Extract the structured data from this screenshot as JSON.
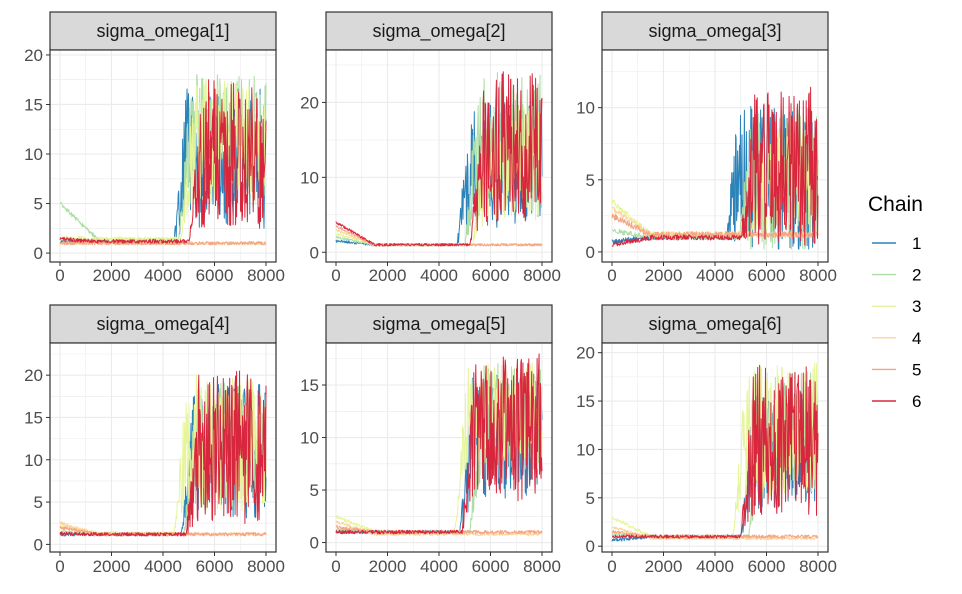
{
  "chart_data": {
    "type": "line",
    "layout": "facet-grid 2x3 trace plots",
    "x_ticks": [
      0,
      2000,
      4000,
      6000,
      8000
    ],
    "x_range": [
      0,
      8000
    ],
    "grid": true,
    "legend": {
      "title": "Chain",
      "placement": "right",
      "entries": [
        {
          "label": "1",
          "color": "#2b83ba"
        },
        {
          "label": "2",
          "color": "#abdda4"
        },
        {
          "label": "3",
          "color": "#e6f598"
        },
        {
          "label": "4",
          "color": "#fdd49e"
        },
        {
          "label": "5",
          "color": "#f4a582"
        },
        {
          "label": "6",
          "color": "#d7263d"
        }
      ]
    },
    "panels": [
      {
        "title": "sigma_omega[1]",
        "ylim": [
          -0.9,
          20.5
        ],
        "y_ticks": [
          0,
          5,
          10,
          15,
          20
        ],
        "series": [
          {
            "name": "1",
            "start": 1.2,
            "pre": 1.2,
            "post": 9.5,
            "amp": 7.0,
            "switch": 4400
          },
          {
            "name": "2",
            "start": 5.0,
            "pre": 1.3,
            "post": 12.0,
            "amp": 6.0,
            "switch": 4600
          },
          {
            "name": "3",
            "start": 1.5,
            "pre": 1.4,
            "post": 11.0,
            "amp": 6.5,
            "switch": 4700
          },
          {
            "name": "4",
            "start": 1.0,
            "pre": 1.0,
            "post": 1.5,
            "amp": 0.5,
            "switch": 8000
          },
          {
            "name": "5",
            "start": 1.0,
            "pre": 1.0,
            "post": 1.2,
            "amp": 0.4,
            "switch": 8000
          },
          {
            "name": "6",
            "start": 1.4,
            "pre": 1.2,
            "post": 10.0,
            "amp": 7.5,
            "switch": 5000
          }
        ]
      },
      {
        "title": "sigma_omega[2]",
        "ylim": [
          -1.3,
          27.0
        ],
        "y_ticks": [
          0,
          10,
          20
        ],
        "series": [
          {
            "name": "1",
            "start": 1.5,
            "pre": 1.0,
            "post": 12.0,
            "amp": 9.0,
            "switch": 4700
          },
          {
            "name": "2",
            "start": 2.0,
            "pre": 1.0,
            "post": 15.0,
            "amp": 9.0,
            "switch": 5000
          },
          {
            "name": "3",
            "start": 2.5,
            "pre": 1.0,
            "post": 12.0,
            "amp": 8.0,
            "switch": 5300
          },
          {
            "name": "4",
            "start": 3.0,
            "pre": 1.0,
            "post": 1.2,
            "amp": 0.4,
            "switch": 8000
          },
          {
            "name": "5",
            "start": 3.5,
            "pre": 1.0,
            "post": 1.0,
            "amp": 0.5,
            "switch": 8000
          },
          {
            "name": "6",
            "start": 4.0,
            "pre": 1.0,
            "post": 14.0,
            "amp": 10.0,
            "switch": 5200
          }
        ]
      },
      {
        "title": "sigma_omega[3]",
        "ylim": [
          -0.7,
          14.0
        ],
        "y_ticks": [
          0,
          5,
          10
        ],
        "series": [
          {
            "name": "1",
            "start": 0.7,
            "pre": 1.0,
            "post": 5.0,
            "amp": 5.0,
            "switch": 4400
          },
          {
            "name": "2",
            "start": 1.5,
            "pre": 1.0,
            "post": 5.0,
            "amp": 5.0,
            "switch": 4900
          },
          {
            "name": "3",
            "start": 3.5,
            "pre": 1.2,
            "post": 5.5,
            "amp": 4.0,
            "switch": 5400
          },
          {
            "name": "4",
            "start": 3.0,
            "pre": 1.2,
            "post": 2.0,
            "amp": 0.8,
            "switch": 8000
          },
          {
            "name": "5",
            "start": 2.5,
            "pre": 1.2,
            "post": 2.0,
            "amp": 0.8,
            "switch": 8000
          },
          {
            "name": "6",
            "start": 0.5,
            "pre": 1.0,
            "post": 6.0,
            "amp": 5.5,
            "switch": 5000
          }
        ]
      },
      {
        "title": "sigma_omega[4]",
        "ylim": [
          -0.9,
          23.8
        ],
        "y_ticks": [
          0,
          5,
          10,
          15,
          20
        ],
        "series": [
          {
            "name": "1",
            "start": 1.2,
            "pre": 1.2,
            "post": 11.0,
            "amp": 8.0,
            "switch": 4700
          },
          {
            "name": "2",
            "start": 1.5,
            "pre": 1.2,
            "post": 12.0,
            "amp": 7.0,
            "switch": 4800
          },
          {
            "name": "3",
            "start": 2.0,
            "pre": 1.3,
            "post": 12.0,
            "amp": 8.0,
            "switch": 4400
          },
          {
            "name": "4",
            "start": 2.5,
            "pre": 1.2,
            "post": 1.5,
            "amp": 0.6,
            "switch": 8000
          },
          {
            "name": "5",
            "start": 2.0,
            "pre": 1.2,
            "post": 1.0,
            "amp": 0.4,
            "switch": 8000
          },
          {
            "name": "6",
            "start": 1.3,
            "pre": 1.2,
            "post": 11.5,
            "amp": 9.0,
            "switch": 4900
          }
        ]
      },
      {
        "title": "sigma_omega[5]",
        "ylim": [
          -0.9,
          19.0
        ],
        "y_ticks": [
          0,
          5,
          10,
          15
        ],
        "series": [
          {
            "name": "1",
            "start": 1.0,
            "pre": 1.0,
            "post": 10.0,
            "amp": 6.0,
            "switch": 4800
          },
          {
            "name": "2",
            "start": 1.2,
            "pre": 1.0,
            "post": 12.0,
            "amp": 5.0,
            "switch": 5200
          },
          {
            "name": "3",
            "start": 2.5,
            "pre": 1.0,
            "post": 12.0,
            "amp": 5.0,
            "switch": 4600
          },
          {
            "name": "4",
            "start": 2.0,
            "pre": 0.8,
            "post": 0.5,
            "amp": 0.3,
            "switch": 8000
          },
          {
            "name": "5",
            "start": 1.5,
            "pre": 1.0,
            "post": 1.3,
            "amp": 0.4,
            "switch": 8000
          },
          {
            "name": "6",
            "start": 1.0,
            "pre": 1.0,
            "post": 11.0,
            "amp": 7.0,
            "switch": 4900
          }
        ]
      },
      {
        "title": "sigma_omega[6]",
        "ylim": [
          -0.6,
          21.0
        ],
        "y_ticks": [
          0,
          5,
          10,
          15,
          20
        ],
        "series": [
          {
            "name": "1",
            "start": 0.6,
            "pre": 1.0,
            "post": 10.0,
            "amp": 6.0,
            "switch": 5000
          },
          {
            "name": "2",
            "start": 1.2,
            "pre": 1.0,
            "post": 12.0,
            "amp": 6.0,
            "switch": 5300
          },
          {
            "name": "3",
            "start": 3.0,
            "pre": 1.0,
            "post": 12.0,
            "amp": 7.0,
            "switch": 4700
          },
          {
            "name": "4",
            "start": 2.0,
            "pre": 0.8,
            "post": 0.6,
            "amp": 0.3,
            "switch": 8000
          },
          {
            "name": "5",
            "start": 1.5,
            "pre": 1.0,
            "post": 0.7,
            "amp": 0.3,
            "switch": 8000
          },
          {
            "name": "6",
            "start": 1.0,
            "pre": 1.0,
            "post": 11.0,
            "amp": 8.0,
            "switch": 5000
          }
        ]
      }
    ]
  }
}
